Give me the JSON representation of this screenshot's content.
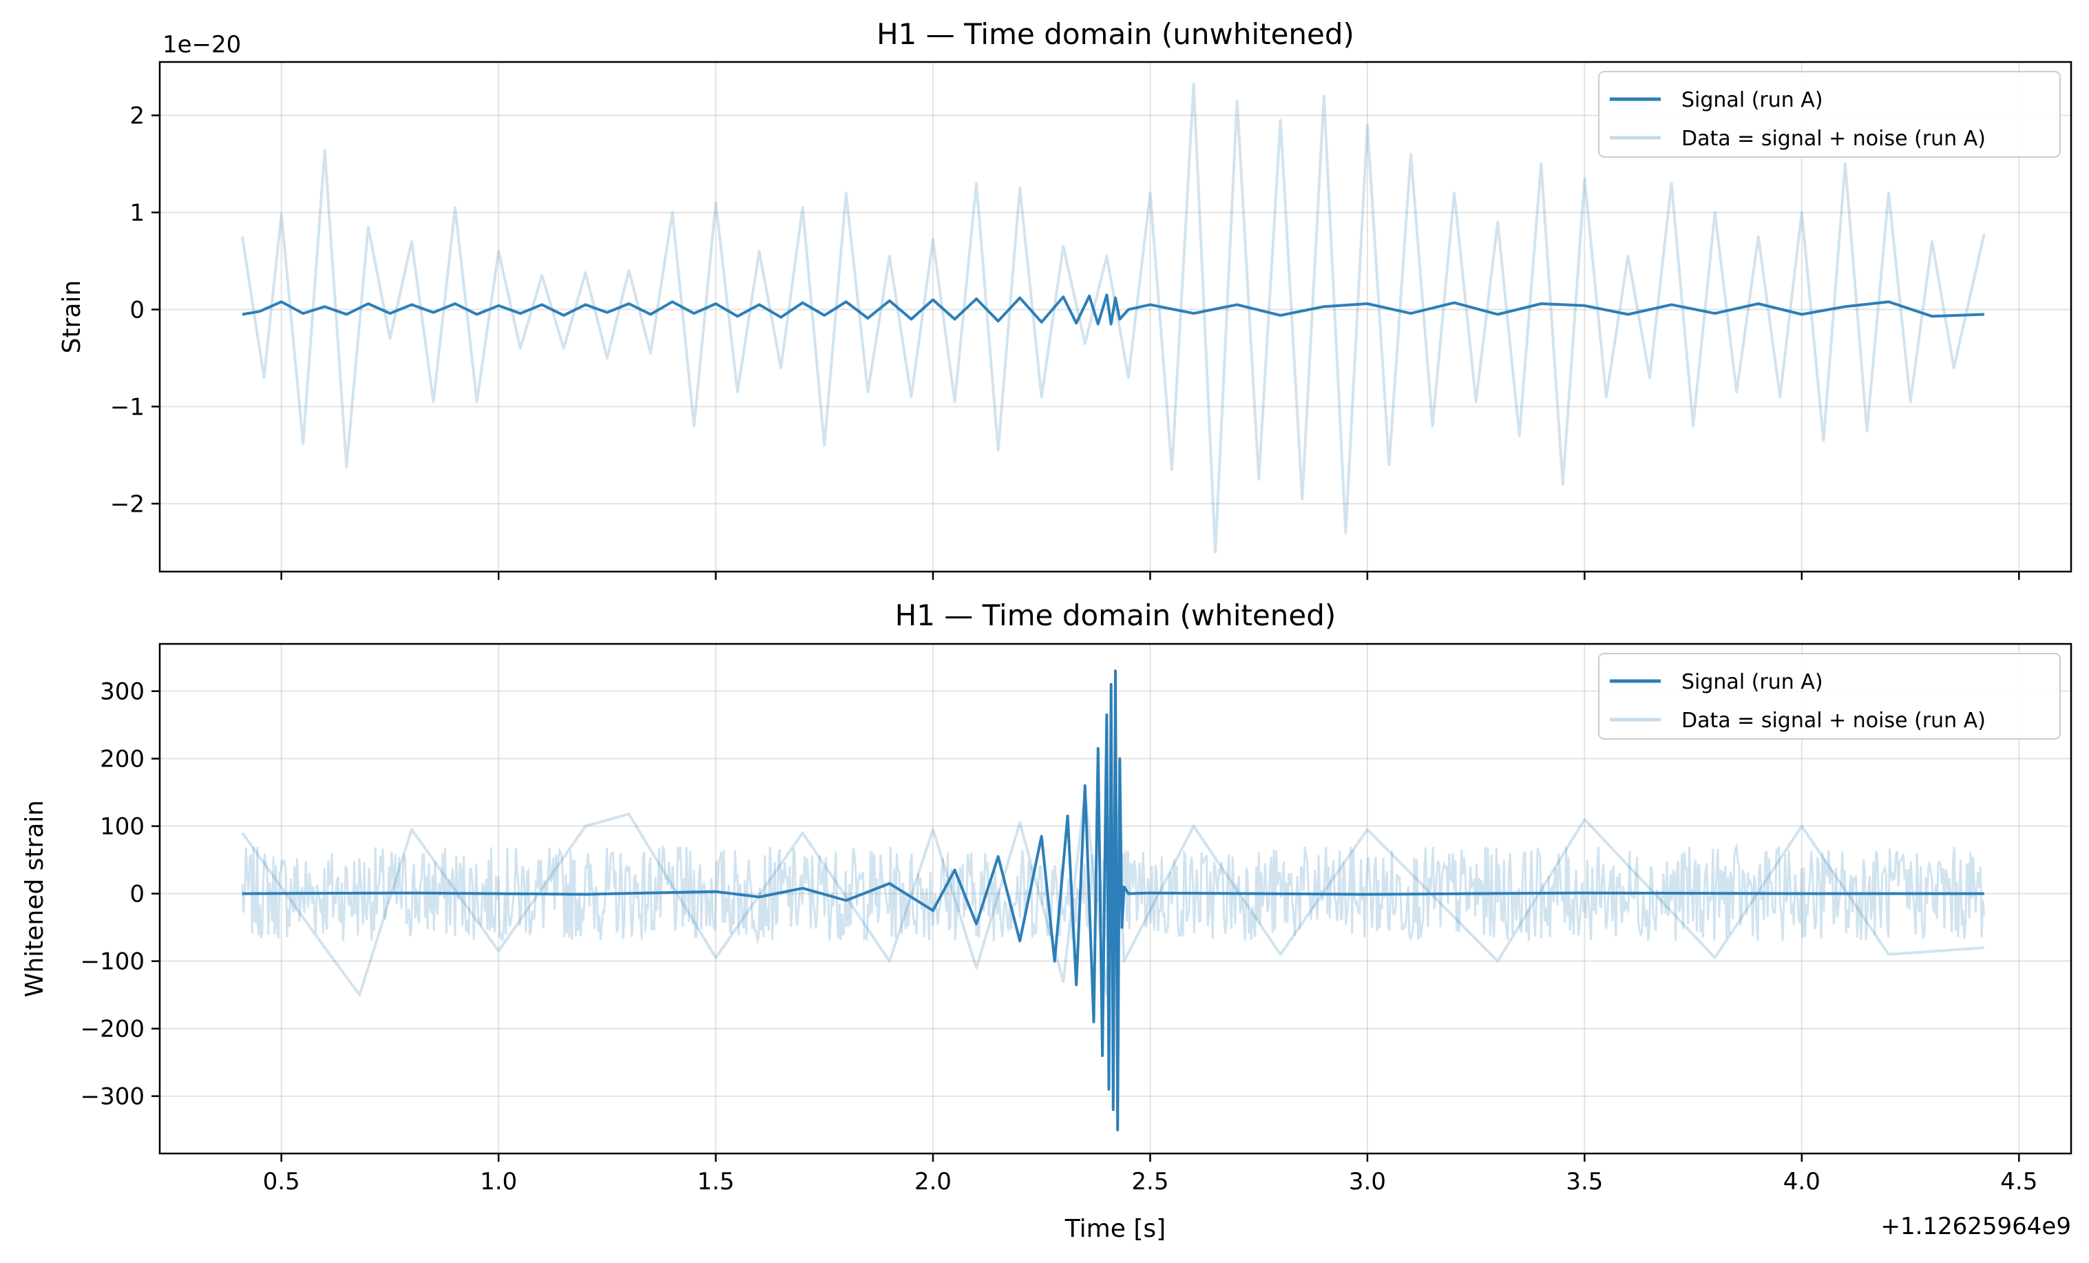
{
  "chart_data": [
    {
      "type": "line",
      "title": "H1 — Time domain (unwhitened)",
      "xlabel": "",
      "ylabel": "Strain",
      "y_scale_label": "1e−20",
      "x_offset_label": "",
      "xlim": [
        0.22,
        4.62
      ],
      "ylim": [
        -2.7,
        2.55
      ],
      "xticks": [
        0.5,
        1.0,
        1.5,
        2.0,
        2.5,
        3.0,
        3.5,
        4.0,
        4.5
      ],
      "xtick_labels": [
        "",
        "",
        "",
        "",
        "",
        "",
        "",
        "",
        ""
      ],
      "yticks": [
        -2,
        -1,
        0,
        1,
        2
      ],
      "ytick_labels": [
        "−2",
        "−1",
        "0",
        "1",
        "2"
      ],
      "grid": true,
      "legend_position": "top-right",
      "series": [
        {
          "name": "Signal (run A)",
          "color": "#2c7fb8",
          "opacity": 1.0,
          "x": [
            0.41,
            0.45,
            0.5,
            0.55,
            0.6,
            0.65,
            0.7,
            0.75,
            0.8,
            0.85,
            0.9,
            0.95,
            1.0,
            1.05,
            1.1,
            1.15,
            1.2,
            1.25,
            1.3,
            1.35,
            1.4,
            1.45,
            1.5,
            1.55,
            1.6,
            1.65,
            1.7,
            1.75,
            1.8,
            1.85,
            1.9,
            1.95,
            2.0,
            2.05,
            2.1,
            2.15,
            2.2,
            2.25,
            2.3,
            2.33,
            2.36,
            2.38,
            2.4,
            2.41,
            2.42,
            2.43,
            2.45,
            2.5,
            2.6,
            2.7,
            2.8,
            2.9,
            3.0,
            3.1,
            3.2,
            3.3,
            3.4,
            3.5,
            3.6,
            3.7,
            3.8,
            3.9,
            4.0,
            4.1,
            4.2,
            4.3,
            4.42
          ],
          "y": [
            -0.05,
            -0.02,
            0.08,
            -0.04,
            0.03,
            -0.05,
            0.06,
            -0.04,
            0.05,
            -0.03,
            0.06,
            -0.05,
            0.04,
            -0.04,
            0.05,
            -0.06,
            0.05,
            -0.03,
            0.06,
            -0.05,
            0.08,
            -0.04,
            0.06,
            -0.07,
            0.05,
            -0.08,
            0.07,
            -0.06,
            0.08,
            -0.09,
            0.09,
            -0.1,
            0.1,
            -0.1,
            0.11,
            -0.12,
            0.12,
            -0.13,
            0.13,
            -0.14,
            0.14,
            -0.15,
            0.15,
            -0.15,
            0.12,
            -0.1,
            0.0,
            0.05,
            -0.04,
            0.05,
            -0.06,
            0.03,
            0.06,
            -0.04,
            0.07,
            -0.05,
            0.06,
            0.04,
            -0.05,
            0.05,
            -0.04,
            0.06,
            -0.05,
            0.03,
            0.08,
            -0.07,
            -0.05
          ]
        },
        {
          "name": "Data = signal + noise (run A)",
          "color": "#2c7fb8",
          "opacity": 0.22,
          "x": [
            0.41,
            0.46,
            0.5,
            0.55,
            0.6,
            0.65,
            0.7,
            0.75,
            0.8,
            0.85,
            0.9,
            0.95,
            1.0,
            1.05,
            1.1,
            1.15,
            1.2,
            1.25,
            1.3,
            1.35,
            1.4,
            1.45,
            1.5,
            1.55,
            1.6,
            1.65,
            1.7,
            1.75,
            1.8,
            1.85,
            1.9,
            1.95,
            2.0,
            2.05,
            2.1,
            2.15,
            2.2,
            2.25,
            2.3,
            2.35,
            2.4,
            2.45,
            2.5,
            2.55,
            2.6,
            2.65,
            2.7,
            2.75,
            2.8,
            2.85,
            2.9,
            2.95,
            3.0,
            3.05,
            3.1,
            3.15,
            3.2,
            3.25,
            3.3,
            3.35,
            3.4,
            3.45,
            3.5,
            3.55,
            3.6,
            3.65,
            3.7,
            3.75,
            3.8,
            3.85,
            3.9,
            3.95,
            4.0,
            4.05,
            4.1,
            4.15,
            4.2,
            4.25,
            4.3,
            4.35,
            4.42
          ],
          "y": [
            0.75,
            -0.7,
            0.98,
            -1.38,
            1.64,
            -1.62,
            0.85,
            -0.3,
            0.7,
            -0.95,
            1.05,
            -0.95,
            0.6,
            -0.4,
            0.35,
            -0.4,
            0.38,
            -0.5,
            0.4,
            -0.45,
            1.0,
            -1.2,
            1.1,
            -0.85,
            0.6,
            -0.6,
            1.05,
            -1.4,
            1.2,
            -0.85,
            0.55,
            -0.9,
            0.72,
            -0.95,
            1.3,
            -1.45,
            1.25,
            -0.9,
            0.65,
            -0.35,
            0.55,
            -0.7,
            1.2,
            -1.65,
            2.32,
            -2.5,
            2.15,
            -1.75,
            1.95,
            -1.95,
            2.2,
            -2.3,
            1.9,
            -1.6,
            1.6,
            -1.2,
            1.2,
            -0.95,
            0.9,
            -1.3,
            1.5,
            -1.8,
            1.35,
            -0.9,
            0.55,
            -0.7,
            1.3,
            -1.2,
            1.0,
            -0.85,
            0.75,
            -0.9,
            1.0,
            -1.35,
            1.5,
            -1.25,
            1.2,
            -0.95,
            0.7,
            -0.6,
            0.78
          ]
        }
      ]
    },
    {
      "type": "line",
      "title": "H1 — Time domain (whitened)",
      "xlabel": "Time [s]",
      "ylabel": "Whitened strain",
      "x_offset_label": "+1.12625964e9",
      "xlim": [
        0.22,
        4.62
      ],
      "ylim": [
        -385,
        370
      ],
      "xticks": [
        0.5,
        1.0,
        1.5,
        2.0,
        2.5,
        3.0,
        3.5,
        4.0,
        4.5
      ],
      "xtick_labels": [
        "0.5",
        "1.0",
        "1.5",
        "2.0",
        "2.5",
        "3.0",
        "3.5",
        "4.0",
        "4.5"
      ],
      "yticks": [
        -300,
        -200,
        -100,
        0,
        100,
        200,
        300
      ],
      "ytick_labels": [
        "−300",
        "−200",
        "−100",
        "0",
        "100",
        "200",
        "300"
      ],
      "grid": true,
      "legend_position": "top-right",
      "series": [
        {
          "name": "Signal (run A)",
          "color": "#2c7fb8",
          "opacity": 1.0,
          "x": [
            0.41,
            0.8,
            1.2,
            1.5,
            1.6,
            1.7,
            1.8,
            1.9,
            2.0,
            2.05,
            2.1,
            2.15,
            2.2,
            2.25,
            2.28,
            2.31,
            2.33,
            2.35,
            2.37,
            2.38,
            2.39,
            2.4,
            2.405,
            2.41,
            2.415,
            2.42,
            2.425,
            2.43,
            2.435,
            2.44,
            2.45,
            2.5,
            3.0,
            3.5,
            4.0,
            4.42
          ],
          "y": [
            0,
            1,
            -1,
            3,
            -5,
            8,
            -10,
            15,
            -25,
            35,
            -45,
            55,
            -70,
            85,
            -100,
            115,
            -135,
            160,
            -190,
            215,
            -240,
            265,
            -290,
            310,
            -320,
            330,
            -350,
            200,
            -50,
            10,
            0,
            1,
            -1,
            1,
            0,
            0
          ]
        },
        {
          "name": "Data = signal + noise (run A)",
          "color": "#2c7fb8",
          "opacity": 0.22,
          "x": [
            0.41,
            0.6,
            0.68,
            0.8,
            1.0,
            1.2,
            1.3,
            1.5,
            1.7,
            1.9,
            2.0,
            2.1,
            2.2,
            2.3,
            2.35,
            2.4,
            2.42,
            2.44,
            2.6,
            2.8,
            3.0,
            3.3,
            3.5,
            3.8,
            4.0,
            4.2,
            4.42
          ],
          "y": [
            90,
            -80,
            -150,
            95,
            -85,
            100,
            118,
            -95,
            90,
            -100,
            95,
            -110,
            105,
            -130,
            150,
            -150,
            160,
            -100,
            100,
            -90,
            95,
            -100,
            110,
            -95,
            100,
            -90,
            -80
          ],
          "noise_band_upper": 70,
          "noise_band_lower": -70
        }
      ]
    }
  ]
}
